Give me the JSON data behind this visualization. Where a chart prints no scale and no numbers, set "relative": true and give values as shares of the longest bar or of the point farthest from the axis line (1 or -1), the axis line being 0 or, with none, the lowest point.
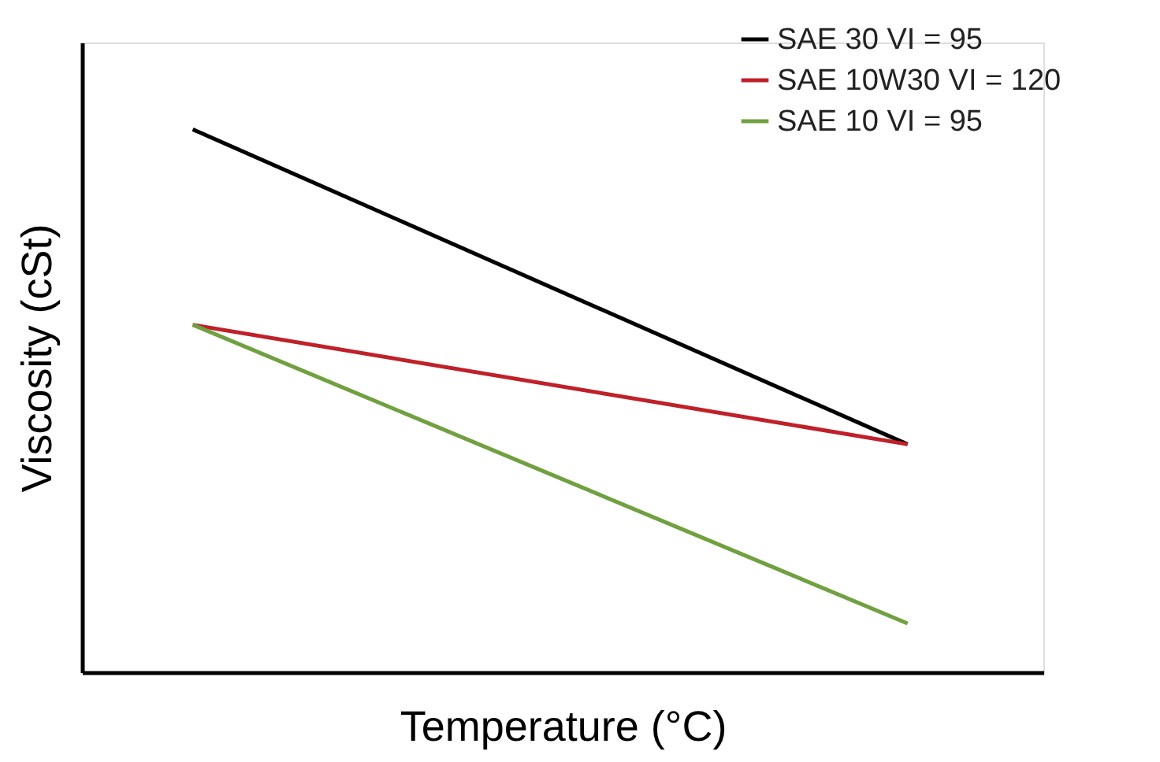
{
  "chart_data": {
    "type": "line",
    "relative": true,
    "xlabel": "Temperature (°C)",
    "ylabel": "Viscosity (cSt)",
    "categories": [
      null,
      null
    ],
    "legend": "top right",
    "marker": "none",
    "line_style": "solid",
    "grid": false,
    "tick_labels": false,
    "series": [
      {
        "name": "SAE 30 VI = 95",
        "color": "#000000",
        "values": [
          1,
          0.42
        ]
      },
      {
        "name": "SAE 10W30 VI = 120",
        "color": "#c0202a",
        "values": [
          0.64,
          0.42
        ]
      },
      {
        "name": "SAE 10 VI = 95",
        "color": "#70a040",
        "values": [
          0.64,
          0.09
        ]
      }
    ]
  }
}
